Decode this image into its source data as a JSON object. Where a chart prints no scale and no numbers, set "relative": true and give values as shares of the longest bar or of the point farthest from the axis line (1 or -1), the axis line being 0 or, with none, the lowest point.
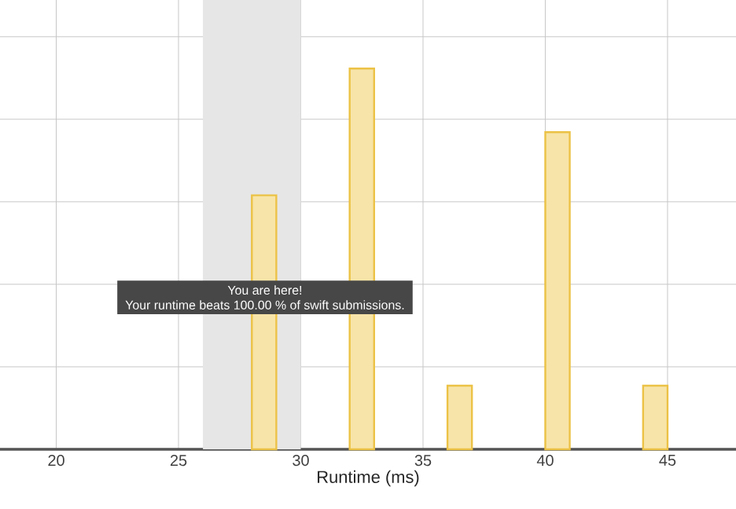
{
  "chart_data": {
    "type": "bar",
    "relative": true,
    "xlabel": "Runtime (ms)",
    "x": [
      28.5,
      32.5,
      36.5,
      40.5,
      44.5
    ],
    "values": [
      0.667,
      1,
      0.167,
      0.833,
      0.167
    ],
    "color": "#f7e4a8",
    "xlim": [
      17.7,
      47.8
    ],
    "xticks": [
      20,
      25,
      30,
      35,
      40,
      45
    ],
    "grid": true,
    "bands": [
      {
        "axis": "x",
        "from": 26,
        "to": 30,
        "color": "#e6e6e6"
      }
    ],
    "annotations": [
      "You are here!",
      "Your runtime beats 100.00 % of swift submissions."
    ]
  }
}
